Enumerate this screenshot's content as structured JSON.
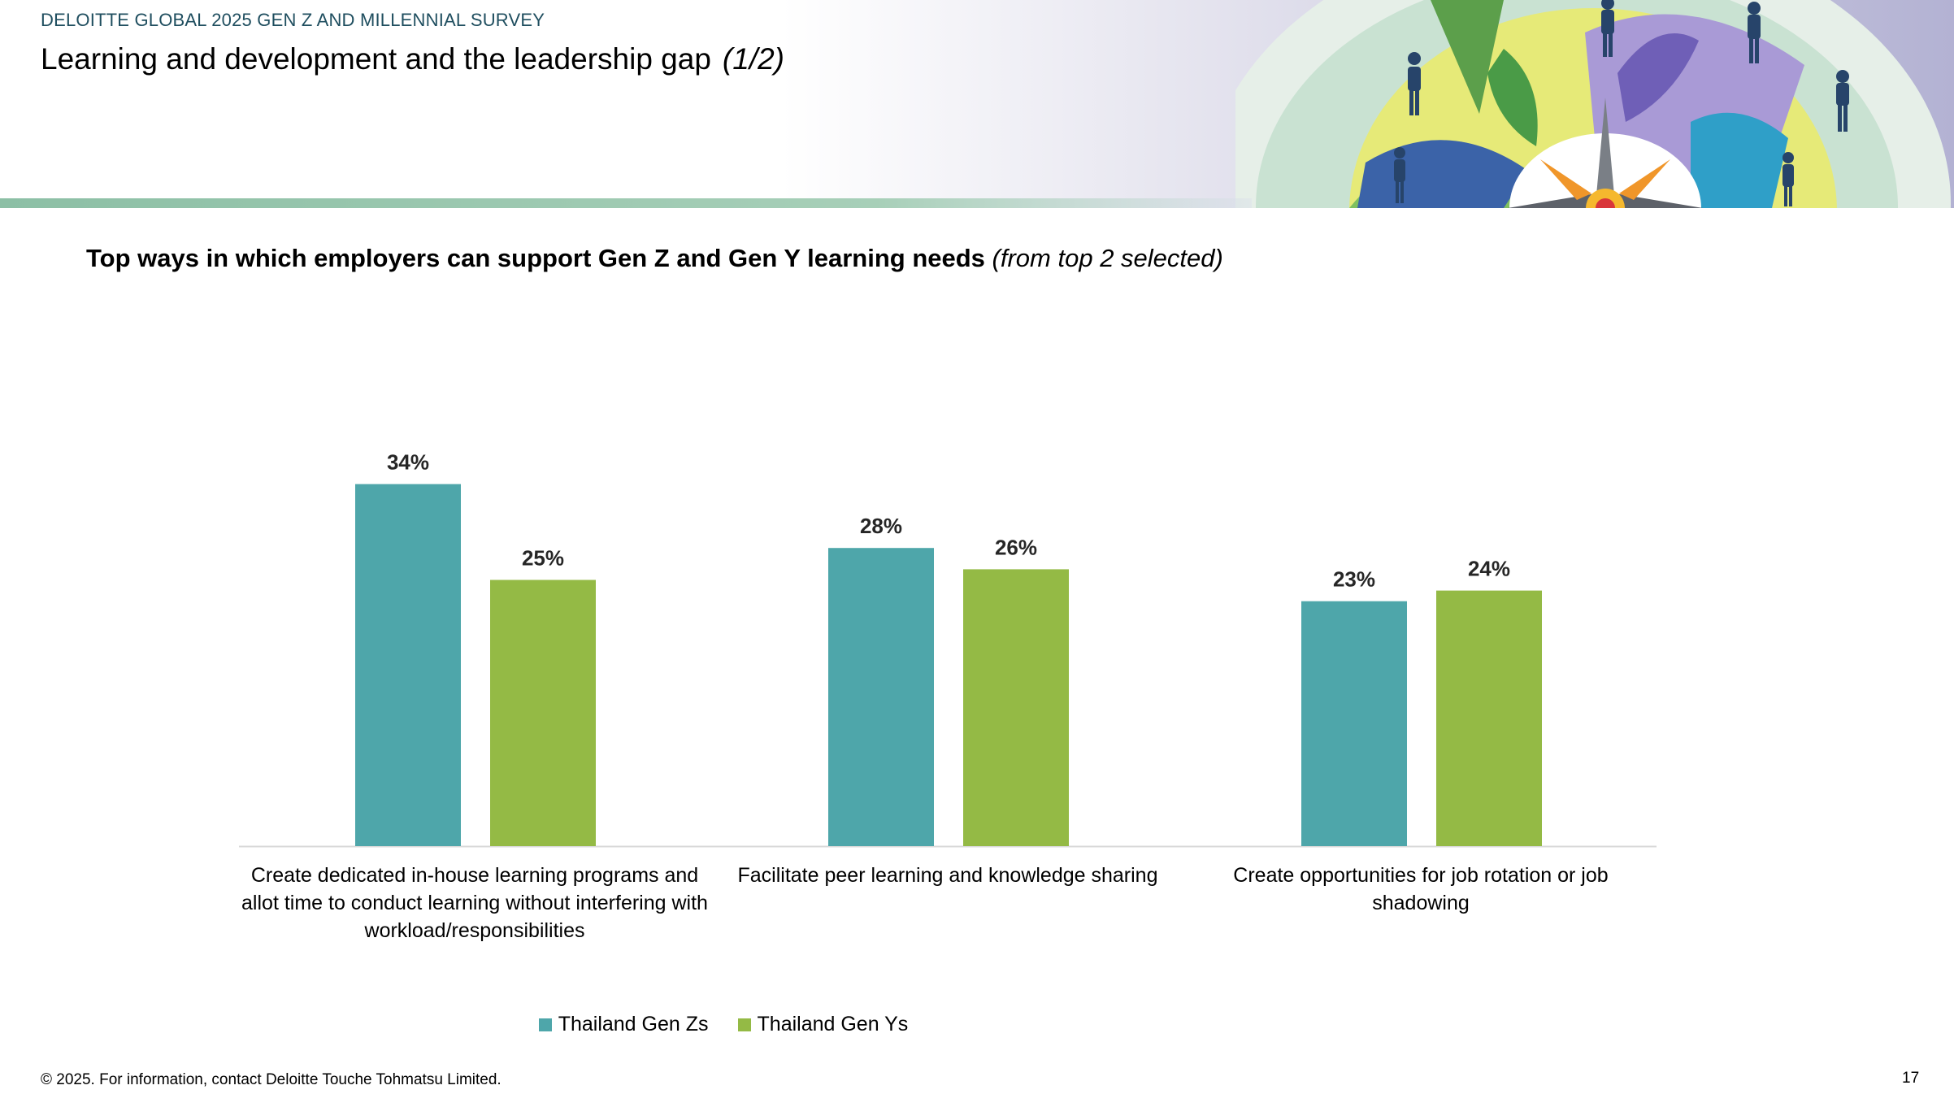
{
  "header": {
    "survey_label": "DELOITTE GLOBAL 2025 GEN Z AND MILLENNIAL SURVEY",
    "title": "Learning and development and the leadership gap",
    "title_part": "(1/2)"
  },
  "chart_data": {
    "type": "bar",
    "title": "Top ways in which employers can support Gen Z and Gen Y learning needs",
    "title_note": "(from top 2 selected)",
    "categories": [
      "Create dedicated in-house learning programs and allot time to conduct learning without interfering with workload/responsibilities",
      "Facilitate peer learning and knowledge sharing",
      "Create opportunities for job rotation or job shadowing"
    ],
    "series": [
      {
        "name": "Thailand Gen Zs",
        "values": [
          34,
          28,
          23
        ],
        "labels": [
          "34%",
          "28%",
          "23%"
        ],
        "color": "#4ea6aa"
      },
      {
        "name": "Thailand Gen Ys",
        "values": [
          25,
          26,
          24
        ],
        "labels": [
          "25%",
          "26%",
          "24%"
        ],
        "color": "#94ba45"
      }
    ],
    "ylim": [
      0,
      40
    ],
    "grid": false,
    "legend_position": "bottom"
  },
  "footer": {
    "copyright": "© 2025. For information, contact Deloitte Touche Tohmatsu Limited.",
    "page_number": "17"
  },
  "colors": {
    "header_text": "#1f4e5f",
    "band": "#8cbfa5"
  }
}
